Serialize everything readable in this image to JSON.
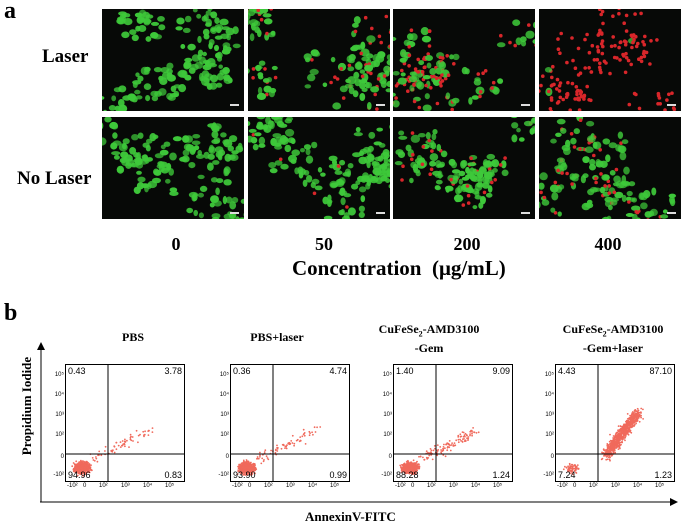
{
  "panel_a": {
    "letter": "a",
    "row_labels": [
      "Laser",
      "No Laser"
    ],
    "concentrations": [
      "0",
      "50",
      "200",
      "400"
    ],
    "x_title": "Concentration  (μg/mL)",
    "red_fraction": {
      "laser": [
        0.0,
        0.25,
        0.5,
        0.98
      ],
      "no_laser": [
        0.0,
        0.05,
        0.2,
        0.3
      ]
    },
    "colors": {
      "live": "#3ec93a",
      "dead": "#d8262a",
      "background": "#070907"
    }
  },
  "panel_b": {
    "letter": "b",
    "y_label": "Propidium Iodide",
    "x_label": "AnnexinV-FITC",
    "x_ticks": [
      "-10²",
      "0",
      "10²",
      "10³",
      "10⁴",
      "10⁵"
    ],
    "y_ticks": [
      "10⁵",
      "10⁴",
      "10³",
      "10²",
      "0",
      "-10²"
    ],
    "dot_color": "#f06a5c",
    "plots": [
      {
        "title": "PBS",
        "title_sub": "",
        "title_line2": "",
        "quadrants": {
          "ul": "0.43",
          "ur": "3.78",
          "ll": "94.96",
          "lr": "0.83"
        }
      },
      {
        "title": "PBS+laser",
        "title_sub": "",
        "title_line2": "",
        "quadrants": {
          "ul": "0.36",
          "ur": "4.74",
          "ll": "93.90",
          "lr": "0.99"
        }
      },
      {
        "title": "CuFeSe",
        "title_sub": "2",
        "title_tail": "-AMD3100",
        "title_line2": "-Gem",
        "quadrants": {
          "ul": "1.40",
          "ur": "9.09",
          "ll": "88.28",
          "lr": "1.24"
        }
      },
      {
        "title": "CuFeSe",
        "title_sub": "2",
        "title_tail": "-AMD3100",
        "title_line2": "-Gem+laser",
        "quadrants": {
          "ul": "4.43",
          "ur": "87.10",
          "ll": "7.24",
          "lr": "1.23"
        }
      }
    ]
  }
}
